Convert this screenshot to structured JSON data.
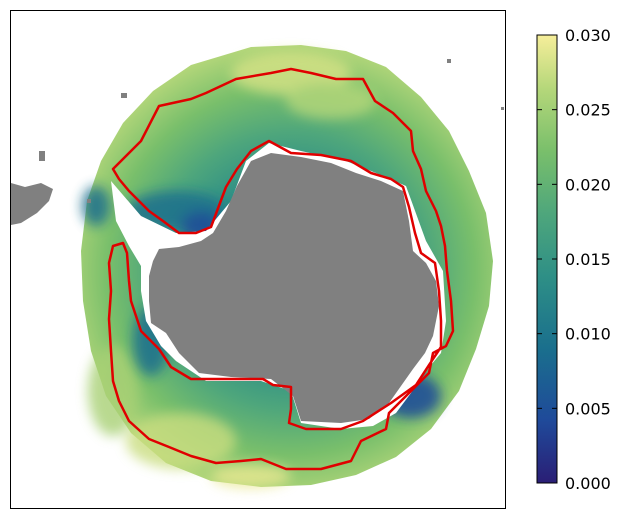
{
  "colors": {
    "land": "#808080",
    "contour": "#e00000",
    "colormap": [
      "#2a1e75",
      "#1f4a9a",
      "#1a6f8d",
      "#2e8f86",
      "#4ea67c",
      "#79bf6b",
      "#b5d77a",
      "#f6ee9a"
    ]
  },
  "colorbar": {
    "min": 0.0,
    "max": 0.03,
    "ticks": [
      "0.000",
      "0.005",
      "0.010",
      "0.015",
      "0.020",
      "0.025",
      "0.030"
    ]
  },
  "map": {
    "projection": "south-polar-stereographic",
    "contour_count": 2
  }
}
